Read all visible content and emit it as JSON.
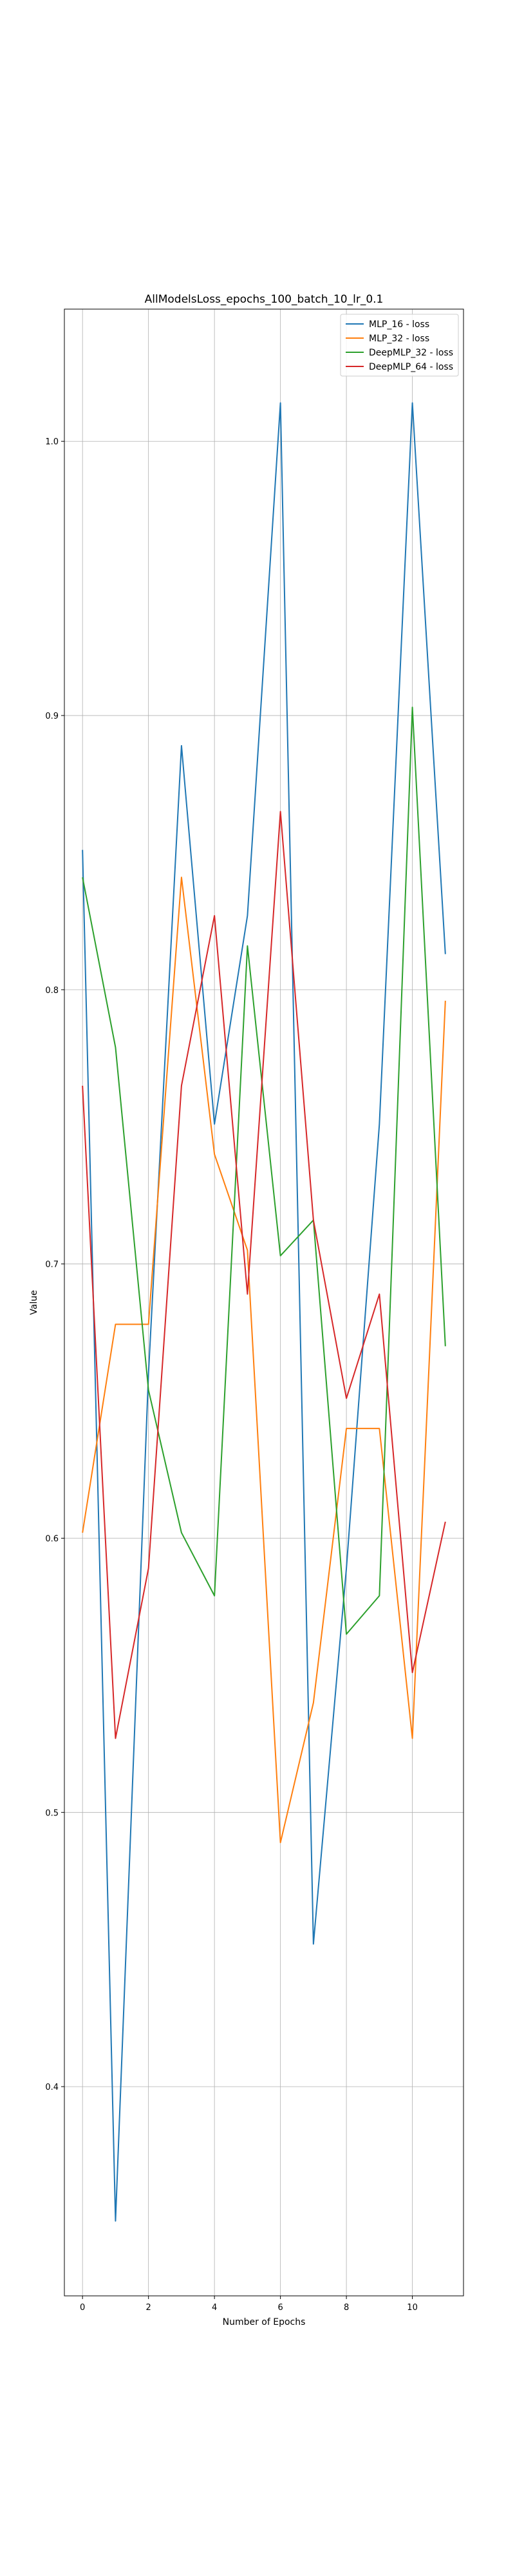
{
  "chart_data": {
    "type": "line",
    "title": "AllModelsLoss_epochs_100_batch_10_lr_0.1",
    "xlabel": "Number of Epochs",
    "ylabel": "Value",
    "x": [
      0,
      1,
      2,
      3,
      4,
      5,
      6,
      7,
      8,
      9,
      10,
      11
    ],
    "xlim": [
      -0.55,
      11.55
    ],
    "ylim": [
      0.3237,
      1.0482
    ],
    "xticks": [
      0,
      2,
      4,
      6,
      8,
      10
    ],
    "yticks": [
      0.4,
      0.5,
      0.6,
      0.7,
      0.8,
      0.9,
      1.0
    ],
    "ytick_labels": [
      "0.4",
      "0.5",
      "0.6",
      "0.7",
      "0.8",
      "0.9",
      "1.0"
    ],
    "grid": true,
    "legend_position": "top-right",
    "series": [
      {
        "name": "MLP_16 - loss",
        "color": "#1f77b4",
        "values": [
          0.851,
          0.351,
          0.66,
          0.889,
          0.751,
          0.827,
          1.014,
          0.452,
          0.589,
          0.751,
          1.014,
          0.813
        ]
      },
      {
        "name": "MLP_32 - loss",
        "color": "#ff7f0e",
        "values": [
          0.602,
          0.678,
          0.678,
          0.841,
          0.74,
          0.705,
          0.489,
          0.54,
          0.64,
          0.64,
          0.527,
          0.796
        ]
      },
      {
        "name": "DeepMLP_32 - loss",
        "color": "#2ca02c",
        "values": [
          0.841,
          0.779,
          0.654,
          0.602,
          0.579,
          0.816,
          0.703,
          0.716,
          0.565,
          0.579,
          0.903,
          0.67
        ]
      },
      {
        "name": "DeepMLP_64 - loss",
        "color": "#d62728",
        "values": [
          0.765,
          0.527,
          0.589,
          0.765,
          0.827,
          0.689,
          0.865,
          0.716,
          0.651,
          0.689,
          0.551,
          0.606
        ]
      }
    ]
  }
}
